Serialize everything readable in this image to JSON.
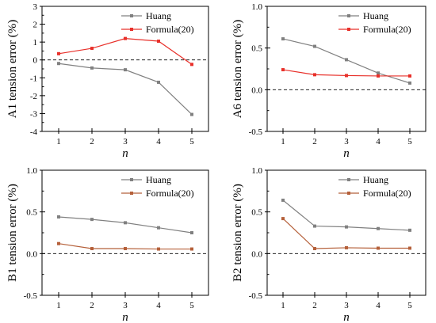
{
  "chart_data": [
    {
      "type": "line",
      "x": [
        1,
        2,
        3,
        4,
        5
      ],
      "xlabel": "n",
      "ylabel": "A1 tension error (%)",
      "ylim": [
        -4,
        3
      ],
      "yticks": [
        -4,
        -3,
        -2,
        -1,
        0,
        1,
        2,
        3
      ],
      "yticklabels": [
        "-4",
        "-3",
        "-2",
        "-1",
        "0",
        "1",
        "2",
        "3"
      ],
      "xticklabels": [
        "1",
        "2",
        "3",
        "4",
        "5"
      ],
      "legend_position": "top-right",
      "grid": false,
      "reference_line": 0,
      "series": [
        {
          "name": "Huang",
          "color": "#808080",
          "values": [
            -0.2,
            -0.45,
            -0.55,
            -1.25,
            -3.05
          ]
        },
        {
          "name": "Formula(20)",
          "color": "#e8302a",
          "values": [
            0.35,
            0.65,
            1.2,
            1.05,
            -0.25
          ]
        }
      ]
    },
    {
      "type": "line",
      "x": [
        1,
        2,
        3,
        4,
        5
      ],
      "xlabel": "n",
      "ylabel": "A6 tension error (%)",
      "ylim": [
        -0.5,
        1.0
      ],
      "yticks": [
        -0.5,
        0.0,
        0.5,
        1.0
      ],
      "yticklabels": [
        "-0.5",
        "0.0",
        "0.5",
        "1.0"
      ],
      "xticklabels": [
        "1",
        "2",
        "3",
        "4",
        "5"
      ],
      "legend_position": "top-right",
      "grid": false,
      "reference_line": 0,
      "series": [
        {
          "name": "Huang",
          "color": "#808080",
          "values": [
            0.61,
            0.52,
            0.36,
            0.2,
            0.08
          ]
        },
        {
          "name": "Formula(20)",
          "color": "#e8302a",
          "values": [
            0.24,
            0.18,
            0.17,
            0.165,
            0.165
          ]
        }
      ]
    },
    {
      "type": "line",
      "x": [
        1,
        2,
        3,
        4,
        5
      ],
      "xlabel": "n",
      "ylabel": "B1 tension error (%)",
      "ylim": [
        -0.5,
        1.0
      ],
      "yticks": [
        -0.5,
        0.0,
        0.5,
        1.0
      ],
      "yticklabels": [
        "-0.5",
        "0.0",
        "0.5",
        "1.0"
      ],
      "xticklabels": [
        "1",
        "2",
        "3",
        "4",
        "5"
      ],
      "legend_position": "top-right",
      "grid": false,
      "reference_line": 0,
      "series": [
        {
          "name": "Huang",
          "color": "#808080",
          "values": [
            0.44,
            0.41,
            0.37,
            0.31,
            0.25
          ]
        },
        {
          "name": "Formula(20)",
          "color": "#b5603a",
          "values": [
            0.12,
            0.06,
            0.06,
            0.055,
            0.055
          ]
        }
      ]
    },
    {
      "type": "line",
      "x": [
        1,
        2,
        3,
        4,
        5
      ],
      "xlabel": "n",
      "ylabel": "B2 tension error (%)",
      "ylim": [
        -0.5,
        1.0
      ],
      "yticks": [
        -0.5,
        0.0,
        0.5,
        1.0
      ],
      "yticklabels": [
        "-0.5",
        "0.0",
        "0.5",
        "1.0"
      ],
      "xticklabels": [
        "1",
        "2",
        "3",
        "4",
        "5"
      ],
      "legend_position": "top-right",
      "grid": false,
      "reference_line": 0,
      "series": [
        {
          "name": "Huang",
          "color": "#808080",
          "values": [
            0.64,
            0.33,
            0.32,
            0.3,
            0.28
          ]
        },
        {
          "name": "Formula(20)",
          "color": "#b5603a",
          "values": [
            0.42,
            0.06,
            0.07,
            0.065,
            0.065
          ]
        }
      ]
    }
  ]
}
